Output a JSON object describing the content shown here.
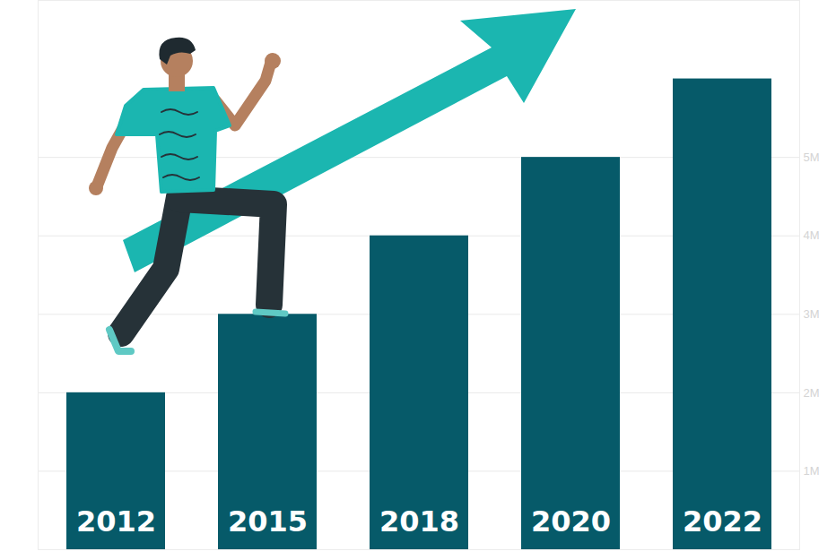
{
  "chart_data": {
    "type": "bar",
    "categories": [
      "2012",
      "2015",
      "2018",
      "2020",
      "2022"
    ],
    "values": [
      2000000,
      3000000,
      4000000,
      5000000,
      6000000
    ],
    "color": "#065a69",
    "ylim": [
      0,
      7000000
    ],
    "yticks": [
      {
        "value": 1000000,
        "label": "1M"
      },
      {
        "value": 2000000,
        "label": "2M"
      },
      {
        "value": 3000000,
        "label": "3M"
      },
      {
        "value": 4000000,
        "label": "4M"
      },
      {
        "value": 5000000,
        "label": "5M"
      }
    ],
    "grid": true
  }
}
